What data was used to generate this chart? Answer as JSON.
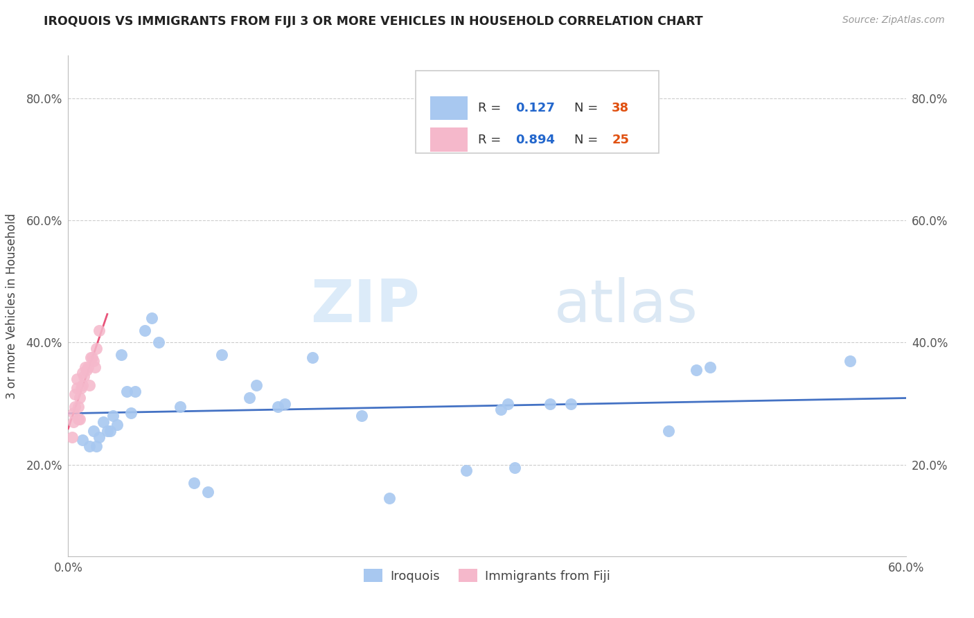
{
  "title": "IROQUOIS VS IMMIGRANTS FROM FIJI 3 OR MORE VEHICLES IN HOUSEHOLD CORRELATION CHART",
  "source": "Source: ZipAtlas.com",
  "ylabel": "3 or more Vehicles in Household",
  "xmin": 0.0,
  "xmax": 0.6,
  "ymin": 0.05,
  "ymax": 0.87,
  "yticks": [
    0.2,
    0.4,
    0.6,
    0.8
  ],
  "ytick_labels": [
    "20.0%",
    "40.0%",
    "60.0%",
    "80.0%"
  ],
  "xticks": [
    0.0,
    0.1,
    0.2,
    0.3,
    0.4,
    0.5,
    0.6
  ],
  "xtick_labels": [
    "0.0%",
    "",
    "",
    "",
    "",
    "",
    "60.0%"
  ],
  "r_iroquois": 0.127,
  "n_iroquois": 38,
  "r_fiji": 0.894,
  "n_fiji": 25,
  "color_iroquois": "#a8c8f0",
  "color_fiji": "#f5b8cb",
  "line_color_iroquois": "#4472c4",
  "line_color_fiji": "#e8547a",
  "watermark_zip": "ZIP",
  "watermark_atlas": "atlas",
  "iroquois_x": [
    0.01,
    0.015,
    0.018,
    0.02,
    0.022,
    0.025,
    0.028,
    0.03,
    0.032,
    0.035,
    0.038,
    0.042,
    0.045,
    0.048,
    0.055,
    0.06,
    0.065,
    0.08,
    0.09,
    0.1,
    0.11,
    0.13,
    0.135,
    0.15,
    0.155,
    0.175,
    0.21,
    0.23,
    0.285,
    0.31,
    0.315,
    0.32,
    0.345,
    0.36,
    0.43,
    0.45,
    0.46,
    0.56
  ],
  "iroquois_y": [
    0.24,
    0.23,
    0.255,
    0.23,
    0.245,
    0.27,
    0.255,
    0.255,
    0.28,
    0.265,
    0.38,
    0.32,
    0.285,
    0.32,
    0.42,
    0.44,
    0.4,
    0.295,
    0.17,
    0.155,
    0.38,
    0.31,
    0.33,
    0.295,
    0.3,
    0.375,
    0.28,
    0.145,
    0.19,
    0.29,
    0.3,
    0.195,
    0.3,
    0.3,
    0.255,
    0.355,
    0.36,
    0.37
  ],
  "fiji_x": [
    0.003,
    0.004,
    0.004,
    0.005,
    0.005,
    0.006,
    0.006,
    0.007,
    0.007,
    0.008,
    0.008,
    0.009,
    0.01,
    0.01,
    0.011,
    0.012,
    0.013,
    0.014,
    0.015,
    0.016,
    0.017,
    0.018,
    0.019,
    0.02,
    0.022
  ],
  "fiji_y": [
    0.245,
    0.27,
    0.285,
    0.295,
    0.315,
    0.325,
    0.34,
    0.275,
    0.295,
    0.275,
    0.31,
    0.325,
    0.33,
    0.35,
    0.345,
    0.36,
    0.355,
    0.36,
    0.33,
    0.375,
    0.375,
    0.37,
    0.36,
    0.39,
    0.42
  ]
}
